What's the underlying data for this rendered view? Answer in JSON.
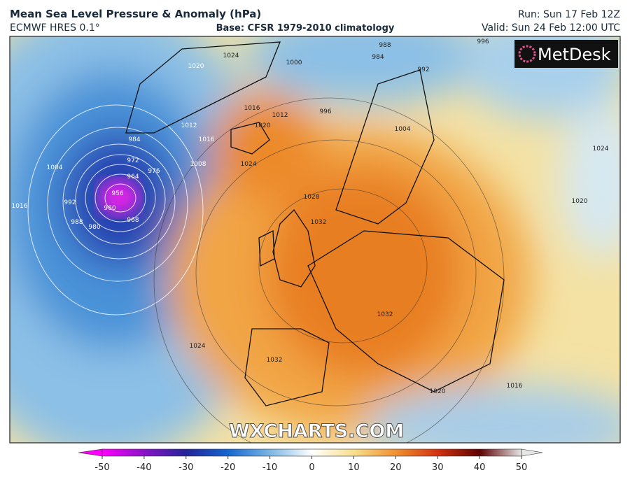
{
  "header": {
    "title": "Mean Sea Level Pressure & Anomaly (hPa)",
    "model": "ECMWF HRES 0.1°",
    "base": "Base: CFSR 1979-2010 climatology",
    "run": "Run: Sun 17 Feb 12Z",
    "valid": "Valid: Sun 24 Feb 12:00 UTC"
  },
  "logo": "MetDesk",
  "watermark": "WXCHARTS.COM",
  "colorbar": {
    "lim": [
      -50,
      50
    ],
    "ticks": [
      -50,
      -40,
      -30,
      -20,
      -10,
      0,
      10,
      20,
      30,
      40,
      50
    ]
  },
  "isobar_labels": [
    "1024",
    "1020",
    "1016",
    "1012",
    "1020",
    "1024",
    "1012",
    "1016",
    "1008",
    "1004",
    "992",
    "988",
    "984",
    "976",
    "972",
    "964",
    "956",
    "960",
    "968",
    "980",
    "1016",
    "1028",
    "1032",
    "1032",
    "1032",
    "1024",
    "1020",
    "1016",
    "1020",
    "1024",
    "988",
    "984",
    "992",
    "996",
    "1000",
    "996",
    "1004"
  ]
}
